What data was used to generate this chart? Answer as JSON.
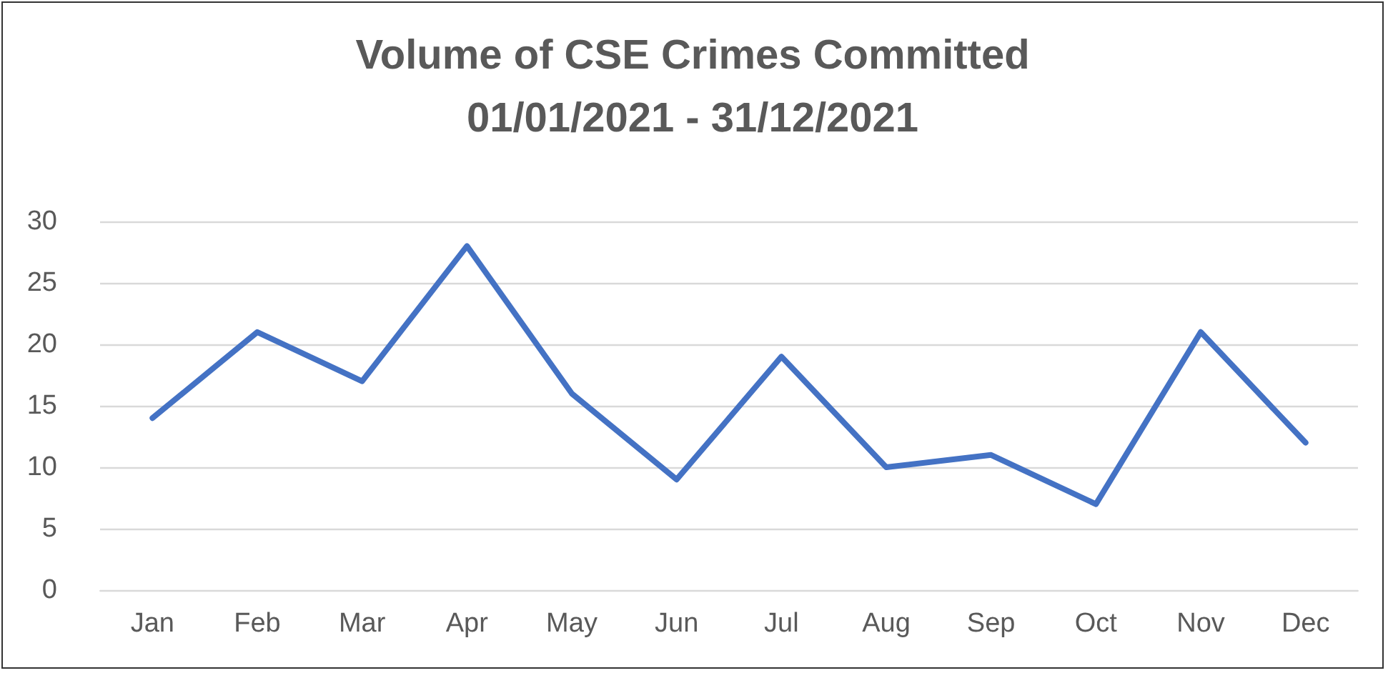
{
  "chart_data": {
    "type": "line",
    "title": "Volume of CSE Crimes Committed\n01/01/2021 - 31/12/2021",
    "categories": [
      "Jan",
      "Feb",
      "Mar",
      "Apr",
      "May",
      "Jun",
      "Jul",
      "Aug",
      "Sep",
      "Oct",
      "Nov",
      "Dec"
    ],
    "series": [
      {
        "color": "#4472c4",
        "values": [
          14,
          21,
          17,
          28,
          16,
          9,
          19,
          10,
          11,
          7,
          21,
          12
        ]
      }
    ],
    "ylim": [
      0,
      30
    ],
    "yticks": [
      0,
      5,
      10,
      15,
      20,
      25,
      30
    ],
    "grid": "y",
    "marker": "none",
    "line_style": "solid"
  }
}
